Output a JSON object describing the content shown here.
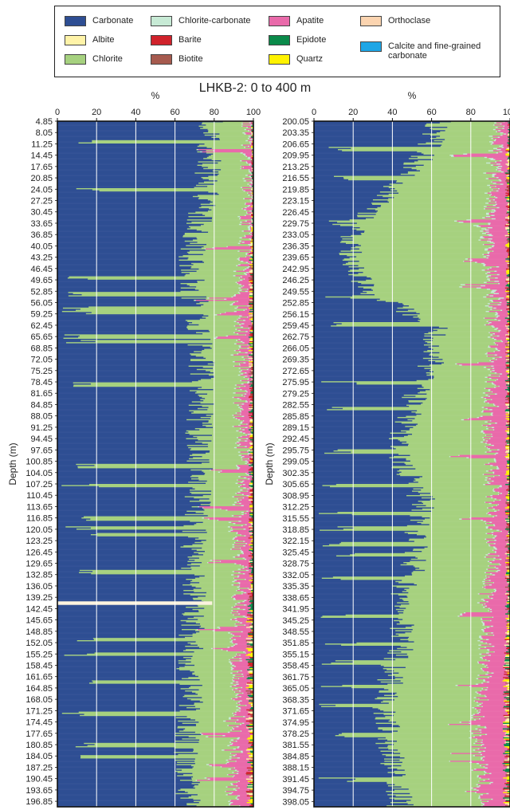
{
  "legend": [
    {
      "label": "Carbonate",
      "color": "#2e4e93"
    },
    {
      "label": "Albite",
      "color": "#fff3a8"
    },
    {
      "label": "Chlorite",
      "color": "#a6d17f"
    },
    {
      "label": "Chlorite-carbonate",
      "color": "#c7ead5"
    },
    {
      "label": "Barite",
      "color": "#d0222b"
    },
    {
      "label": "Biotite",
      "color": "#a65a4e"
    },
    {
      "label": "Apatite",
      "color": "#e96aaa"
    },
    {
      "label": "Epidote",
      "color": "#0a8a4a"
    },
    {
      "label": "Quartz",
      "color": "#fff200"
    },
    {
      "label": "Orthoclase",
      "color": "#fbd4b0"
    },
    {
      "label": "Calcite and fine-grained carbonate",
      "color": "#1ea6e6"
    }
  ],
  "chart_data": {
    "type": "area",
    "title": "LHKB-2: 0 to 400 m",
    "panels": [
      {
        "xlabel": "%",
        "ylabel": "Depth (m)",
        "xlim": [
          0,
          100
        ],
        "xticks": [
          "0",
          "20",
          "40",
          "60",
          "80",
          "100"
        ],
        "ylim": [
          4.85,
          198.4
        ],
        "depth_ticks": [
          "4.85",
          "8.05",
          "11.25",
          "14.45",
          "17.65",
          "20.85",
          "24.05",
          "27.25",
          "30.45",
          "33.65",
          "36.85",
          "40.05",
          "43.25",
          "46.45",
          "49.65",
          "52.85",
          "56.05",
          "59.25",
          "62.45",
          "65.65",
          "68.85",
          "72.05",
          "75.25",
          "78.45",
          "81.65",
          "84.85",
          "88.05",
          "91.25",
          "94.45",
          "97.65",
          "100.85",
          "104.05",
          "107.25",
          "110.45",
          "113.65",
          "116.85",
          "120.05",
          "123.25",
          "126.45",
          "129.65",
          "132.85",
          "136.05",
          "139.25",
          "142.45",
          "145.65",
          "148.85",
          "152.05",
          "155.25",
          "158.45",
          "161.65",
          "164.85",
          "168.05",
          "171.25",
          "174.45",
          "177.65",
          "180.85",
          "184.05",
          "187.25",
          "190.45",
          "193.65",
          "196.85"
        ],
        "profile": {
          "depth": [
            4.85,
            15,
            25,
            35,
            45,
            55,
            65,
            75,
            85,
            95,
            105,
            115,
            125,
            135,
            145,
            155,
            165,
            175,
            185,
            198.4
          ],
          "carbonate": [
            79,
            77,
            76,
            71,
            68,
            70,
            72,
            74,
            73,
            72,
            73,
            71,
            69,
            70,
            70,
            67,
            68,
            67,
            66,
            66
          ],
          "chlorite": [
            18,
            20,
            21,
            25,
            26,
            23,
            21,
            20,
            20,
            22,
            21,
            21,
            23,
            22,
            21,
            23,
            23,
            23,
            23,
            23
          ],
          "apatite": [
            1,
            1,
            1,
            2,
            3,
            4,
            4,
            3,
            4,
            3,
            3,
            5,
            5,
            5,
            5,
            6,
            5,
            6,
            7,
            7
          ],
          "chlorite_carbonate": [
            1,
            1,
            1,
            1,
            1,
            1,
            1,
            1,
            1,
            1,
            1,
            1,
            1,
            1,
            1,
            1,
            1,
            1,
            1,
            1
          ],
          "other": [
            1,
            1,
            1,
            1,
            2,
            2,
            2,
            2,
            2,
            2,
            2,
            2,
            2,
            2,
            3,
            3,
            3,
            3,
            3,
            3
          ]
        },
        "chlorite_bands_depth": [
          10.5,
          24.0,
          49.0,
          53.5,
          57.5,
          58.5,
          65.5,
          67.0,
          79.0,
          102.0,
          107.5,
          116.8,
          119.5,
          121.5,
          132.0,
          151.0,
          155.2,
          163.0,
          172.0,
          180.9,
          184.1
        ],
        "apatite_bands_depth": [
          13.0,
          40.5,
          55.0,
          59.0,
          65.7,
          103.5,
          114.0,
          117.0,
          129.0,
          148.0,
          153.5,
          178.0,
          186.5,
          190.5
        ],
        "quartz_bands_depth": [
          155.3,
          196.5
        ],
        "gap_band_depth": [
          140.4,
          141.4
        ]
      },
      {
        "xlabel": "%",
        "ylabel": "Depth (m)",
        "xlim": [
          0,
          100
        ],
        "xticks": [
          "0",
          "20",
          "40",
          "60",
          "80",
          "100"
        ],
        "ylim": [
          200.05,
          399.6
        ],
        "depth_ticks": [
          "200.05",
          "203.35",
          "206.65",
          "209.95",
          "213.25",
          "216.55",
          "219.85",
          "223.15",
          "226.45",
          "229.75",
          "233.05",
          "236.35",
          "239.65",
          "242.95",
          "246.25",
          "249.55",
          "252.85",
          "256.15",
          "259.45",
          "262.75",
          "266.05",
          "269.35",
          "272.65",
          "275.95",
          "279.25",
          "282.55",
          "285.85",
          "289.15",
          "292.45",
          "295.75",
          "299.05",
          "302.35",
          "305.65",
          "308.95",
          "312.25",
          "315.55",
          "318.85",
          "322.15",
          "325.45",
          "328.75",
          "332.05",
          "335.35",
          "338.65",
          "341.95",
          "345.25",
          "348.55",
          "351.85",
          "355.15",
          "358.45",
          "361.75",
          "365.05",
          "368.35",
          "371.65",
          "374.95",
          "378.25",
          "381.55",
          "384.85",
          "388.15",
          "391.45",
          "394.75",
          "398.05"
        ],
        "profile": {
          "depth": [
            200.05,
            210,
            220,
            230,
            240,
            250,
            260,
            270,
            280,
            290,
            300,
            310,
            320,
            330,
            340,
            350,
            360,
            370,
            380,
            390,
            399.6
          ],
          "carbonate": [
            64,
            56,
            40,
            20,
            17,
            30,
            63,
            60,
            52,
            45,
            45,
            55,
            53,
            50,
            44,
            46,
            40,
            36,
            38,
            42,
            44
          ],
          "chlorite": [
            31,
            34,
            52,
            66,
            72,
            60,
            28,
            31,
            37,
            44,
            45,
            36,
            37,
            41,
            43,
            42,
            46,
            47,
            45,
            43,
            43
          ],
          "apatite": [
            3,
            6,
            5,
            10,
            8,
            6,
            6,
            6,
            8,
            8,
            7,
            6,
            7,
            6,
            10,
            9,
            10,
            13,
            13,
            11,
            9
          ],
          "chlorite_carbonate": [
            1,
            2,
            1,
            2,
            1,
            2,
            1,
            1,
            1,
            1,
            1,
            1,
            1,
            1,
            1,
            1,
            1,
            1,
            1,
            1,
            1
          ],
          "other": [
            1,
            2,
            2,
            2,
            2,
            2,
            2,
            2,
            2,
            2,
            2,
            2,
            2,
            2,
            2,
            2,
            3,
            3,
            3,
            3,
            3
          ]
        },
        "chlorite_bands_depth": [
          208.0,
          216.5,
          229.5,
          251.0,
          259.0,
          276.0,
          283.5,
          296.0,
          306.0,
          314.0,
          318.5,
          323.0,
          326.0,
          333.0,
          344.0,
          352.0,
          357.5,
          364.5,
          370.0,
          378.5,
          391.5
        ],
        "apatite_bands_depth": [
          210.0,
          229.0,
          240.5,
          248.0,
          270.5,
          286.5,
          297.5,
          315.8,
          343.5,
          364.0,
          375.0,
          383.5,
          386.0,
          394.5
        ],
        "quartz_bands_depth": [
          236.0,
          244.0,
          391.0
        ]
      }
    ]
  }
}
